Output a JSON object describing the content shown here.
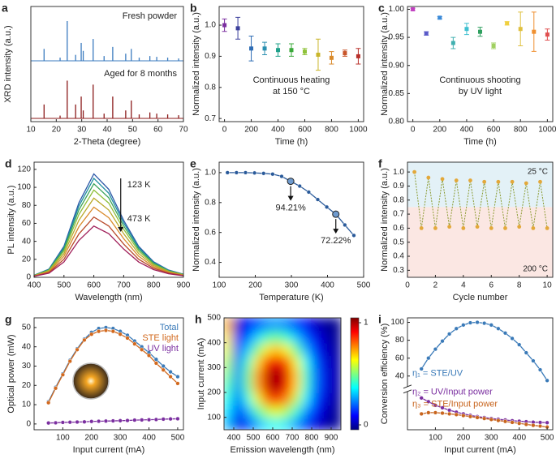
{
  "chart_data": [
    {
      "type": "stick",
      "label": "a",
      "xlabel": "2-Theta (degree)",
      "ylabel": "XRD intensity (a.u.)",
      "xlim": [
        10,
        70
      ],
      "xticks": [
        10,
        20,
        30,
        40,
        50,
        60,
        70
      ],
      "x": [
        15.2,
        21.5,
        24.3,
        27.6,
        29.8,
        30.6,
        34.5,
        38.8,
        42.2,
        47.3,
        49.5,
        52.6,
        56.8,
        59.5,
        63.8,
        68.1
      ],
      "series": [
        {
          "name": "Fresh powder",
          "color": "#3b7bbf",
          "values": [
            0.3,
            0.08,
            1.0,
            0.15,
            0.45,
            0.25,
            0.55,
            0.12,
            0.35,
            0.18,
            0.3,
            0.08,
            0.12,
            0.1,
            0.08,
            0.06
          ]
        },
        {
          "name": "Aged for 8 months",
          "color": "#8b1a1a",
          "values": [
            0.35,
            0.07,
            0.95,
            0.35,
            0.55,
            0.2,
            0.85,
            0.12,
            0.55,
            0.2,
            0.45,
            0.1,
            0.15,
            0.12,
            0.1,
            0.08
          ]
        }
      ]
    },
    {
      "type": "errorbar",
      "label": "b",
      "xlabel": "Time (h)",
      "ylabel": "Normalized intensity (a.u.)",
      "xlim": [
        -40,
        1040
      ],
      "xticks": [
        0,
        200,
        400,
        600,
        800,
        1000
      ],
      "ylim": [
        0.69,
        1.06
      ],
      "yticks": [
        0.7,
        0.8,
        0.9,
        {
          "value": 1,
          "label": "1.0"
        }
      ],
      "x": [
        0,
        100,
        200,
        300,
        400,
        500,
        600,
        700,
        800,
        900,
        1000
      ],
      "values": [
        1.0,
        0.99,
        0.925,
        0.925,
        0.92,
        0.92,
        0.915,
        0.905,
        0.895,
        0.91,
        0.9
      ],
      "errors": [
        0.02,
        0.035,
        0.04,
        0.02,
        0.02,
        0.02,
        0.01,
        0.05,
        0.02,
        0.01,
        0.025
      ],
      "colors": [
        "#7b2fa0",
        "#3b3f9c",
        "#2f6db5",
        "#2a8fb0",
        "#1fa08a",
        "#3aa83a",
        "#8fc23a",
        "#c9b52a",
        "#d98a2b",
        "#c8552a",
        "#b8302a"
      ],
      "annotation": [
        "Continuous heating",
        "at 150 °C"
      ]
    },
    {
      "type": "errorbar",
      "label": "c",
      "xlabel": "Time (h)",
      "ylabel": "Normalized intensity (a.u.)",
      "xlim": [
        -40,
        1040
      ],
      "xticks": [
        0,
        200,
        400,
        600,
        800,
        1000
      ],
      "ylim": [
        0.8,
        1.005
      ],
      "yticks": [
        {
          "value": 0.8,
          "label": "0.80"
        },
        0.85,
        {
          "value": 0.9,
          "label": "0.90"
        },
        0.95,
        {
          "value": 1,
          "label": "1.00"
        }
      ],
      "x": [
        0,
        100,
        200,
        300,
        400,
        500,
        600,
        700,
        800,
        900,
        1000
      ],
      "values": [
        1.0,
        0.957,
        0.985,
        0.94,
        0.965,
        0.96,
        0.935,
        0.975,
        0.965,
        0.96,
        0.955
      ],
      "errors": [
        0.002,
        0.003,
        0.002,
        0.01,
        0.01,
        0.008,
        0.005,
        0.003,
        0.03,
        0.035,
        0.01
      ],
      "colors": [
        "#c040c0",
        "#5a5ac8",
        "#3a8ad8",
        "#40b0b0",
        "#40c0d0",
        "#30a060",
        "#a0d060",
        "#f0d040",
        "#e0c040",
        "#f09030",
        "#e05050"
      ],
      "annotation": [
        "Continuous shooting",
        "by UV light"
      ]
    },
    {
      "type": "line",
      "label": "d",
      "xlabel": "Wavelength (nm)",
      "ylabel": "PL intensity (a.u.)",
      "xlim": [
        400,
        900
      ],
      "xticks": [
        400,
        500,
        600,
        700,
        800,
        900
      ],
      "ylim": [
        0,
        128
      ],
      "yticks": [
        0,
        20,
        40,
        60,
        80,
        100,
        120
      ],
      "annotations": [
        "123 K",
        "473 K"
      ],
      "x": [
        400,
        450,
        500,
        550,
        600,
        650,
        700,
        750,
        800,
        850,
        900
      ],
      "series": [
        {
          "color": "#2b57a7",
          "values": [
            2.3,
            9.2,
            34.5,
            82.8,
            115,
            97.8,
            63.3,
            34.5,
            17.3,
            8.1,
            3.5
          ]
        },
        {
          "color": "#1f8fa0",
          "values": [
            2.2,
            8.8,
            33,
            79.2,
            110,
            93.5,
            60.5,
            33,
            16.5,
            7.7,
            3.3
          ]
        },
        {
          "color": "#3aa35a",
          "values": [
            2.1,
            8.3,
            31.2,
            74.9,
            104,
            88.4,
            57.2,
            31.2,
            15.6,
            7.3,
            3.1
          ]
        },
        {
          "color": "#8fbf3a",
          "values": [
            1.9,
            7.8,
            29.1,
            69.8,
            97,
            82.5,
            53.4,
            29.1,
            14.6,
            6.8,
            2.9
          ]
        },
        {
          "color": "#b9a92a",
          "values": [
            1.8,
            7,
            26.4,
            63.4,
            88,
            74.8,
            48.4,
            26.4,
            13.2,
            6.2,
            2.6
          ]
        },
        {
          "color": "#d98a2b",
          "values": [
            1.6,
            6.2,
            23.4,
            56.2,
            78,
            66.3,
            42.9,
            23.4,
            11.7,
            5.5,
            2.3
          ]
        },
        {
          "color": "#b84a2a",
          "values": [
            1.3,
            5.4,
            20.1,
            48.2,
            67,
            57,
            36.9,
            20.1,
            10.1,
            4.7,
            2
          ]
        },
        {
          "color": "#a0205a",
          "values": [
            1.1,
            4.6,
            17.1,
            41,
            57,
            48.5,
            31.4,
            17.1,
            8.6,
            4,
            1.7
          ]
        }
      ]
    },
    {
      "type": "line",
      "label": "e",
      "xlabel": "Temperature (K)",
      "ylabel": "Normalized intensity (a.u.)",
      "xlim": [
        100,
        500
      ],
      "xticks": [
        100,
        200,
        300,
        400,
        500
      ],
      "ylim": [
        0.3,
        1.07
      ],
      "yticks": [
        0.4,
        0.6,
        0.8,
        {
          "value": 1,
          "label": "1.0"
        }
      ],
      "markers": true,
      "x": [
        123,
        148,
        173,
        198,
        223,
        248,
        273,
        298,
        323,
        348,
        373,
        398,
        423,
        448,
        473
      ],
      "series": [
        {
          "color": "#2a5a9a",
          "values": [
            1.0,
            1.0,
            1.0,
            0.998,
            0.995,
            0.99,
            0.975,
            0.9421,
            0.91,
            0.87,
            0.82,
            0.77,
            0.7222,
            0.65,
            0.58
          ]
        }
      ],
      "highlights": [
        {
          "x": 298,
          "value": 0.9421,
          "label": "94.21%"
        },
        {
          "x": 423,
          "value": 0.7222,
          "label": "72.22%"
        }
      ]
    },
    {
      "type": "line",
      "label": "f",
      "xlabel": "Cycle number",
      "ylabel": "Normalized intensity (a.u.)",
      "xlim": [
        0,
        10.4
      ],
      "xticks": [
        0,
        2,
        4,
        6,
        8,
        10
      ],
      "ylim": [
        0.25,
        1.07
      ],
      "yticks": [
        0.3,
        0.4,
        0.5,
        0.6,
        0.7,
        0.8,
        0.9,
        {
          "value": 1,
          "label": "1.0"
        }
      ],
      "markers": true,
      "dashed": true,
      "regions": [
        {
          "label": "25 °C",
          "range": [
            0.75,
            1.07
          ],
          "color": "#e3f1f7"
        },
        {
          "label": "200 °C",
          "range": [
            0.25,
            0.75
          ],
          "color": "#fbe7e3"
        }
      ],
      "x": [
        0.5,
        1,
        1.5,
        2,
        2.5,
        3,
        3.5,
        4,
        4.5,
        5,
        5.5,
        6,
        6.5,
        7,
        7.5,
        8,
        8.5,
        9,
        9.5,
        10
      ],
      "series": [
        {
          "color": "#8a9a30",
          "marker_color": "#e3a83a",
          "values": [
            1.0,
            0.6,
            0.96,
            0.6,
            0.95,
            0.61,
            0.94,
            0.6,
            0.94,
            0.61,
            0.93,
            0.6,
            0.93,
            0.6,
            0.93,
            0.61,
            0.92,
            0.6,
            0.93,
            0.6
          ]
        }
      ]
    },
    {
      "type": "line",
      "label": "g",
      "xlabel": "Input current (mA)",
      "ylabel": "Optical power (mW)",
      "xlim": [
        0,
        520
      ],
      "xticks": [
        100,
        200,
        300,
        400,
        500
      ],
      "ylim": [
        -3,
        55
      ],
      "yticks": [
        0,
        10,
        20,
        30,
        40,
        50
      ],
      "markers": true,
      "legend": "top-right",
      "x": [
        50,
        75,
        100,
        125,
        150,
        175,
        200,
        225,
        250,
        275,
        300,
        325,
        350,
        375,
        400,
        425,
        450,
        475,
        500
      ],
      "series": [
        {
          "name": "Total",
          "color": "#3a7ab8",
          "values": [
            11.5,
            19,
            26,
            33,
            39,
            44,
            47.5,
            49.5,
            50,
            49.5,
            48,
            46,
            43,
            40,
            37,
            33.5,
            30,
            27,
            24.5
          ]
        },
        {
          "name": "STE light",
          "color": "#d2691e",
          "values": [
            11,
            18.5,
            25.5,
            32.5,
            38.5,
            43.5,
            46.5,
            48,
            48.5,
            48,
            46.5,
            44.5,
            41.5,
            38.5,
            35.5,
            31.5,
            28,
            24.5,
            21
          ]
        },
        {
          "name": "UV light",
          "color": "#7b2fa0",
          "values": [
            0.5,
            0.6,
            0.8,
            0.9,
            1.0,
            1.1,
            1.3,
            1.4,
            1.5,
            1.6,
            1.7,
            1.8,
            2.0,
            2.1,
            2.2,
            2.3,
            2.5,
            2.6,
            2.7
          ]
        }
      ]
    },
    {
      "type": "heatmap",
      "label": "h",
      "xlabel": "Emission wavelength (nm)",
      "ylabel": "Input current (mA)",
      "xlim": [
        350,
        950
      ],
      "xticks": [
        400,
        500,
        600,
        700,
        800,
        900
      ],
      "ylim": [
        50,
        500
      ],
      "yticks": [
        100,
        200,
        300,
        400,
        500
      ],
      "clim": [
        0,
        1
      ],
      "cbticks": [
        0,
        1
      ],
      "x": [
        375,
        425,
        475,
        525,
        575,
        625,
        675,
        725,
        775,
        825,
        875,
        925
      ],
      "y": [
        75,
        125,
        175,
        225,
        275,
        325,
        375,
        425,
        475
      ],
      "z": [
        [
          0.3,
          0.1,
          0.19,
          0.29,
          0.36,
          0.39,
          0.35,
          0.27,
          0.17,
          0.09,
          0.04,
          0.02
        ],
        [
          0.35,
          0.16,
          0.29,
          0.44,
          0.56,
          0.6,
          0.54,
          0.41,
          0.26,
          0.14,
          0.06,
          0.02
        ],
        [
          0.4,
          0.22,
          0.4,
          0.6,
          0.77,
          0.82,
          0.74,
          0.56,
          0.36,
          0.19,
          0.09,
          0.03
        ],
        [
          0.45,
          0.26,
          0.47,
          0.71,
          0.91,
          0.97,
          0.87,
          0.66,
          0.42,
          0.23,
          0.1,
          0.04
        ],
        [
          0.5,
          0.26,
          0.48,
          0.72,
          0.92,
          0.99,
          0.89,
          0.67,
          0.43,
          0.23,
          0.1,
          0.04
        ],
        [
          0.55,
          0.24,
          0.43,
          0.65,
          0.83,
          0.89,
          0.8,
          0.61,
          0.39,
          0.21,
          0.09,
          0.04
        ],
        [
          0.6,
          0.18,
          0.33,
          0.5,
          0.64,
          0.69,
          0.62,
          0.47,
          0.3,
          0.16,
          0.07,
          0.03
        ],
        [
          0.65,
          0.13,
          0.23,
          0.34,
          0.44,
          0.47,
          0.42,
          0.32,
          0.21,
          0.11,
          0.05,
          0.02
        ],
        [
          0.7,
          0.07,
          0.14,
          0.2,
          0.26,
          0.28,
          0.25,
          0.19,
          0.12,
          0.06,
          0.03,
          0.01
        ]
      ]
    },
    {
      "type": "line",
      "label": "i",
      "xlabel": "Input current (mA)",
      "ylabel": "Conversion efficiency (%)",
      "xlim": [
        0,
        520
      ],
      "xticks": [
        100,
        200,
        300,
        400,
        500
      ],
      "ylim": [
        30,
        105
      ],
      "yticks": [
        40,
        60,
        80,
        100
      ],
      "y2lim": [
        0,
        15
      ],
      "markers": true,
      "legend": "left",
      "x": [
        50,
        75,
        100,
        125,
        150,
        175,
        200,
        225,
        250,
        275,
        300,
        325,
        350,
        375,
        400,
        425,
        450,
        475,
        500
      ],
      "series": [
        {
          "name": "η₁ = STE/UV",
          "color": "#3a7ab8",
          "values": [
            48,
            60,
            70,
            79,
            87,
            93,
            97,
            99.5,
            100,
            99,
            97,
            93,
            88,
            82,
            75,
            66,
            57,
            47,
            35
          ]
        },
        {
          "name": "η₂ = UV/Input power",
          "color": "#7b2fa0",
          "axis": "y2",
          "values": [
            13,
            11.5,
            10,
            9,
            8,
            7.2,
            6.5,
            5.9,
            5.4,
            5,
            4.6,
            4.3,
            4,
            3.7,
            3.5,
            3.3,
            3.1,
            3,
            2.9
          ]
        },
        {
          "name": "η₃ = STE/Input power",
          "color": "#c8651e",
          "axis": "y2",
          "values": [
            6.5,
            7,
            7,
            6.8,
            6.5,
            6.2,
            5.8,
            5.4,
            5,
            4.6,
            4.2,
            3.8,
            3.4,
            3,
            2.6,
            2.2,
            1.8,
            1.5,
            1.1
          ]
        }
      ]
    }
  ]
}
